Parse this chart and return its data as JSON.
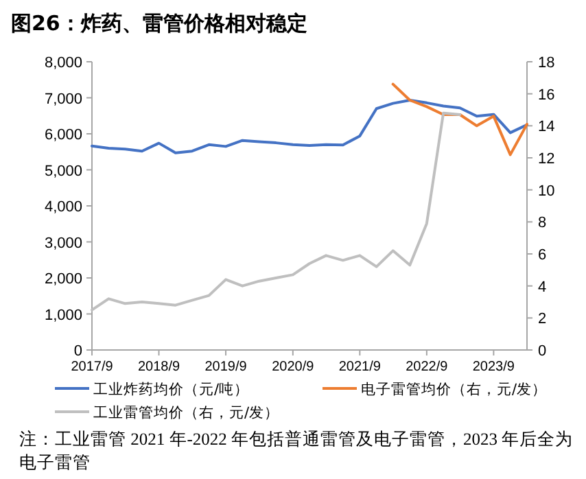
{
  "chart_data": {
    "type": "line",
    "title": "图26：炸药、雷管价格相对稳定",
    "x": [
      "2017-09",
      "2017-12",
      "2018-03",
      "2018-06",
      "2018-09",
      "2018-12",
      "2019-03",
      "2019-06",
      "2019-09",
      "2019-12",
      "2020-03",
      "2020-06",
      "2020-09",
      "2020-12",
      "2021-03",
      "2021-06",
      "2021-09",
      "2021-12",
      "2022-03",
      "2022-06",
      "2022-09",
      "2022-12",
      "2023-03",
      "2023-06",
      "2023-09",
      "2023-12",
      "2024-03"
    ],
    "series": [
      {
        "name": "工业炸药均价（元/吨）",
        "color": "#4472c4",
        "values": [
          5660,
          5600,
          5575,
          5520,
          5740,
          5470,
          5520,
          5700,
          5650,
          5815,
          5780,
          5750,
          5700,
          5675,
          5700,
          5690,
          5940,
          6700,
          6845,
          6935,
          6860,
          6770,
          6720,
          6490,
          6540,
          6030,
          6250
        ]
      },
      {
        "name": "电子雷管均价（右，元/发）",
        "color": "#ed7d31",
        "axis": "y2",
        "values": [
          null,
          null,
          null,
          null,
          null,
          null,
          null,
          null,
          null,
          null,
          null,
          null,
          null,
          null,
          null,
          null,
          null,
          null,
          16.6,
          15.6,
          15.2,
          14.7,
          14.7,
          14.0,
          14.6,
          12.2,
          14.1
        ]
      },
      {
        "name": "工业雷管均价（右，元/发）",
        "color": "#bfbfbf",
        "axis": "y2",
        "values": [
          2.5,
          3.2,
          2.9,
          3.0,
          2.9,
          2.8,
          3.1,
          3.4,
          4.4,
          4.0,
          4.3,
          4.5,
          4.7,
          5.4,
          5.9,
          5.6,
          5.9,
          5.2,
          6.2,
          5.3,
          7.9,
          14.8,
          14.7,
          null,
          null,
          null,
          null
        ]
      }
    ],
    "xlim": [
      "2017-09",
      "2024-03"
    ],
    "xticks": [
      {
        "value": "2017-09",
        "label": "2017/9"
      },
      {
        "value": "2018-09",
        "label": "2018/9"
      },
      {
        "value": "2019-09",
        "label": "2019/9"
      },
      {
        "value": "2020-09",
        "label": "2020/9"
      },
      {
        "value": "2021-09",
        "label": "2021/9"
      },
      {
        "value": "2022-09",
        "label": "2022/9"
      },
      {
        "value": "2023-09",
        "label": "2023/9"
      }
    ],
    "ylim": [
      0,
      8000
    ],
    "yticks": [
      0,
      {
        "value": 1000,
        "label": "1,000"
      },
      {
        "value": 2000,
        "label": "2,000"
      },
      {
        "value": 3000,
        "label": "3,000"
      },
      {
        "value": 4000,
        "label": "4,000"
      },
      {
        "value": 5000,
        "label": "5,000"
      },
      {
        "value": 6000,
        "label": "6,000"
      },
      {
        "value": 7000,
        "label": "7,000"
      },
      {
        "value": 8000,
        "label": "8,000"
      }
    ],
    "y2lim": [
      0,
      18
    ],
    "y2ticks": [
      0,
      2,
      4,
      6,
      8,
      10,
      12,
      14,
      16,
      18
    ],
    "grid": false,
    "legend": "bottom",
    "line_style": "solid",
    "annotations": [
      "注：工业雷管 2021 年-2022 年包括普通雷管及电子雷管，2023 年后全为电子雷管"
    ]
  }
}
